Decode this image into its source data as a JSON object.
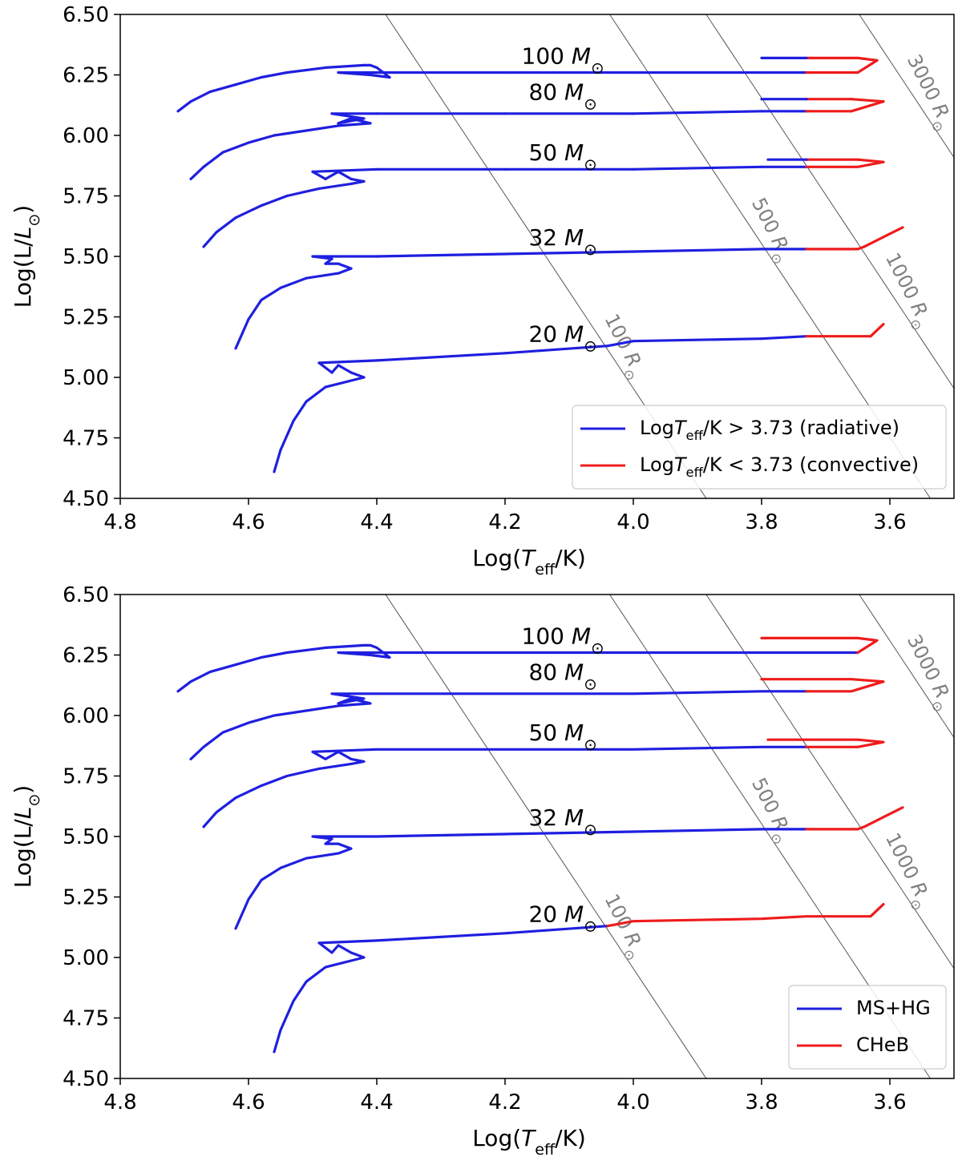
{
  "colors": {
    "blue": "#1f1fe0",
    "red": "#ee1c1c",
    "iso": "#555555",
    "radius_text": "#808080"
  },
  "text": {
    "xlabel": "Log(T_eff/K)",
    "ylabel": "Log(L/L_⊙)",
    "masses": [
      "100 M⊙",
      "80 M⊙",
      "50 M⊙",
      "32 M⊙",
      "20 M⊙"
    ],
    "radii": [
      "100 R⊙",
      "500 R⊙",
      "1000 R⊙",
      "3000 R⊙"
    ]
  },
  "chart_data": [
    {
      "type": "line",
      "title": "",
      "xlabel": "Log(T_eff/K)",
      "ylabel": "Log(L/L_⊙)",
      "xlim": [
        4.8,
        3.5
      ],
      "ylim": [
        4.5,
        6.5
      ],
      "x_ticks": [
        "4.8",
        "4.6",
        "4.4",
        "4.2",
        "4.0",
        "3.8",
        "3.6"
      ],
      "y_ticks": [
        "4.50",
        "4.75",
        "5.00",
        "5.25",
        "5.50",
        "5.75",
        "6.00",
        "6.25",
        "6.50"
      ],
      "legend": {
        "position": "lower-right",
        "entries": [
          {
            "label": "LogT_eff/K > 3.73 (radiative)",
            "color": "blue"
          },
          {
            "label": "LogT_eff/K < 3.73 (convective)",
            "color": "red"
          }
        ]
      },
      "split_rule": "temperature",
      "split_value": 3.73,
      "isoradius_lines_Rsun": [
        100,
        500,
        1000,
        3000
      ],
      "tracks": [
        {
          "mass_label": "100 M⊙",
          "label_at": [
            4.11,
            6.33
          ],
          "path": [
            [
              4.71,
              6.1
            ],
            [
              4.69,
              6.14
            ],
            [
              4.66,
              6.18
            ],
            [
              4.62,
              6.21
            ],
            [
              4.58,
              6.24
            ],
            [
              4.54,
              6.26
            ],
            [
              4.48,
              6.28
            ],
            [
              4.42,
              6.29
            ],
            [
              4.41,
              6.29
            ],
            [
              4.4,
              6.28
            ],
            [
              4.38,
              6.24
            ],
            [
              4.41,
              6.25
            ],
            [
              4.46,
              6.26
            ],
            [
              4.4,
              6.26
            ],
            [
              4.2,
              6.26
            ],
            [
              4.0,
              6.26
            ],
            [
              3.8,
              6.26
            ],
            [
              3.73,
              6.26
            ],
            [
              3.65,
              6.26
            ],
            [
              3.62,
              6.31
            ],
            [
              3.65,
              6.32
            ],
            [
              3.73,
              6.32
            ],
            [
              3.8,
              6.32
            ]
          ]
        },
        {
          "mass_label": "80 M⊙",
          "label_at": [
            4.11,
            6.18
          ],
          "path": [
            [
              4.69,
              5.82
            ],
            [
              4.67,
              5.87
            ],
            [
              4.64,
              5.93
            ],
            [
              4.6,
              5.97
            ],
            [
              4.56,
              6.0
            ],
            [
              4.51,
              6.02
            ],
            [
              4.46,
              6.04
            ],
            [
              4.41,
              6.05
            ],
            [
              4.44,
              6.07
            ],
            [
              4.46,
              6.05
            ],
            [
              4.42,
              6.07
            ],
            [
              4.47,
              6.09
            ],
            [
              4.4,
              6.09
            ],
            [
              4.2,
              6.09
            ],
            [
              4.0,
              6.09
            ],
            [
              3.8,
              6.1
            ],
            [
              3.73,
              6.1
            ],
            [
              3.66,
              6.1
            ],
            [
              3.61,
              6.14
            ],
            [
              3.66,
              6.15
            ],
            [
              3.73,
              6.15
            ],
            [
              3.8,
              6.15
            ]
          ]
        },
        {
          "mass_label": "50 M⊙",
          "label_at": [
            4.11,
            5.93
          ],
          "path": [
            [
              4.67,
              5.54
            ],
            [
              4.65,
              5.6
            ],
            [
              4.62,
              5.66
            ],
            [
              4.58,
              5.71
            ],
            [
              4.54,
              5.75
            ],
            [
              4.49,
              5.78
            ],
            [
              4.44,
              5.8
            ],
            [
              4.42,
              5.81
            ],
            [
              4.44,
              5.82
            ],
            [
              4.46,
              5.85
            ],
            [
              4.48,
              5.82
            ],
            [
              4.5,
              5.85
            ],
            [
              4.4,
              5.86
            ],
            [
              4.2,
              5.86
            ],
            [
              4.0,
              5.86
            ],
            [
              3.8,
              5.87
            ],
            [
              3.73,
              5.87
            ],
            [
              3.65,
              5.87
            ],
            [
              3.61,
              5.89
            ],
            [
              3.65,
              5.9
            ],
            [
              3.73,
              5.9
            ],
            [
              3.79,
              5.9
            ]
          ]
        },
        {
          "mass_label": "32 M⊙",
          "label_at": [
            4.11,
            5.58
          ],
          "path": [
            [
              4.62,
              5.12
            ],
            [
              4.6,
              5.24
            ],
            [
              4.58,
              5.32
            ],
            [
              4.55,
              5.37
            ],
            [
              4.51,
              5.41
            ],
            [
              4.46,
              5.43
            ],
            [
              4.44,
              5.45
            ],
            [
              4.46,
              5.47
            ],
            [
              4.48,
              5.47
            ],
            [
              4.47,
              5.49
            ],
            [
              4.5,
              5.5
            ],
            [
              4.4,
              5.5
            ],
            [
              4.2,
              5.51
            ],
            [
              4.0,
              5.52
            ],
            [
              3.8,
              5.53
            ],
            [
              3.73,
              5.53
            ],
            [
              3.65,
              5.53
            ],
            [
              3.64,
              5.54
            ],
            [
              3.61,
              5.58
            ],
            [
              3.58,
              5.62
            ]
          ]
        },
        {
          "mass_label": "20 M⊙",
          "label_at": [
            4.11,
            5.18
          ],
          "path": [
            [
              4.56,
              4.61
            ],
            [
              4.55,
              4.7
            ],
            [
              4.53,
              4.82
            ],
            [
              4.51,
              4.9
            ],
            [
              4.48,
              4.96
            ],
            [
              4.42,
              5.0
            ],
            [
              4.44,
              5.02
            ],
            [
              4.46,
              5.05
            ],
            [
              4.47,
              5.02
            ],
            [
              4.49,
              5.06
            ],
            [
              4.4,
              5.07
            ],
            [
              4.2,
              5.1
            ],
            [
              4.04,
              5.13
            ],
            [
              4.0,
              5.15
            ],
            [
              3.8,
              5.16
            ],
            [
              3.73,
              5.17
            ],
            [
              3.63,
              5.17
            ],
            [
              3.61,
              5.22
            ]
          ]
        }
      ]
    },
    {
      "type": "line",
      "title": "",
      "xlabel": "Log(T_eff/K)",
      "ylabel": "Log(L/L_⊙)",
      "xlim": [
        4.8,
        3.5
      ],
      "ylim": [
        4.5,
        6.5
      ],
      "x_ticks": [
        "4.8",
        "4.6",
        "4.4",
        "4.2",
        "4.0",
        "3.8",
        "3.6"
      ],
      "y_ticks": [
        "4.50",
        "4.75",
        "5.00",
        "5.25",
        "5.50",
        "5.75",
        "6.00",
        "6.25",
        "6.50"
      ],
      "legend": {
        "position": "lower-right",
        "entries": [
          {
            "label": "MS+HG",
            "color": "blue"
          },
          {
            "label": "CHeB",
            "color": "red"
          }
        ]
      },
      "split_rule": "phase",
      "isoradius_lines_Rsun": [
        100,
        500,
        1000,
        3000
      ],
      "tracks": [
        {
          "mass_label": "100 M⊙",
          "label_at": [
            4.11,
            6.33
          ],
          "split_index": 18,
          "path": [
            [
              4.71,
              6.1
            ],
            [
              4.69,
              6.14
            ],
            [
              4.66,
              6.18
            ],
            [
              4.62,
              6.21
            ],
            [
              4.58,
              6.24
            ],
            [
              4.54,
              6.26
            ],
            [
              4.48,
              6.28
            ],
            [
              4.42,
              6.29
            ],
            [
              4.41,
              6.29
            ],
            [
              4.4,
              6.28
            ],
            [
              4.38,
              6.24
            ],
            [
              4.41,
              6.25
            ],
            [
              4.46,
              6.26
            ],
            [
              4.4,
              6.26
            ],
            [
              4.2,
              6.26
            ],
            [
              4.0,
              6.26
            ],
            [
              3.8,
              6.26
            ],
            [
              3.73,
              6.26
            ],
            [
              3.65,
              6.26
            ],
            [
              3.62,
              6.31
            ],
            [
              3.65,
              6.32
            ],
            [
              3.73,
              6.32
            ],
            [
              3.8,
              6.32
            ]
          ]
        },
        {
          "mass_label": "80 M⊙",
          "label_at": [
            4.11,
            6.18
          ],
          "split_index": 16,
          "path": [
            [
              4.69,
              5.82
            ],
            [
              4.67,
              5.87
            ],
            [
              4.64,
              5.93
            ],
            [
              4.6,
              5.97
            ],
            [
              4.56,
              6.0
            ],
            [
              4.51,
              6.02
            ],
            [
              4.46,
              6.04
            ],
            [
              4.41,
              6.05
            ],
            [
              4.44,
              6.07
            ],
            [
              4.46,
              6.05
            ],
            [
              4.42,
              6.07
            ],
            [
              4.47,
              6.09
            ],
            [
              4.4,
              6.09
            ],
            [
              4.2,
              6.09
            ],
            [
              4.0,
              6.09
            ],
            [
              3.8,
              6.1
            ],
            [
              3.73,
              6.1
            ],
            [
              3.66,
              6.1
            ],
            [
              3.61,
              6.14
            ],
            [
              3.66,
              6.15
            ],
            [
              3.73,
              6.15
            ],
            [
              3.8,
              6.15
            ]
          ]
        },
        {
          "mass_label": "50 M⊙",
          "label_at": [
            4.11,
            5.93
          ],
          "split_index": 16,
          "path": [
            [
              4.67,
              5.54
            ],
            [
              4.65,
              5.6
            ],
            [
              4.62,
              5.66
            ],
            [
              4.58,
              5.71
            ],
            [
              4.54,
              5.75
            ],
            [
              4.49,
              5.78
            ],
            [
              4.44,
              5.8
            ],
            [
              4.42,
              5.81
            ],
            [
              4.44,
              5.82
            ],
            [
              4.46,
              5.85
            ],
            [
              4.48,
              5.82
            ],
            [
              4.5,
              5.85
            ],
            [
              4.4,
              5.86
            ],
            [
              4.2,
              5.86
            ],
            [
              4.0,
              5.86
            ],
            [
              3.8,
              5.87
            ],
            [
              3.73,
              5.87
            ],
            [
              3.65,
              5.87
            ],
            [
              3.61,
              5.89
            ],
            [
              3.65,
              5.9
            ],
            [
              3.73,
              5.9
            ],
            [
              3.79,
              5.9
            ]
          ]
        },
        {
          "mass_label": "32 M⊙",
          "label_at": [
            4.11,
            5.58
          ],
          "split_index": 15,
          "path": [
            [
              4.62,
              5.12
            ],
            [
              4.6,
              5.24
            ],
            [
              4.58,
              5.32
            ],
            [
              4.55,
              5.37
            ],
            [
              4.51,
              5.41
            ],
            [
              4.46,
              5.43
            ],
            [
              4.44,
              5.45
            ],
            [
              4.46,
              5.47
            ],
            [
              4.48,
              5.47
            ],
            [
              4.47,
              5.49
            ],
            [
              4.5,
              5.5
            ],
            [
              4.4,
              5.5
            ],
            [
              4.2,
              5.51
            ],
            [
              4.0,
              5.52
            ],
            [
              3.8,
              5.53
            ],
            [
              3.73,
              5.53
            ],
            [
              3.65,
              5.53
            ],
            [
              3.64,
              5.54
            ],
            [
              3.61,
              5.58
            ],
            [
              3.58,
              5.62
            ]
          ]
        },
        {
          "mass_label": "20 M⊙",
          "label_at": [
            4.11,
            5.18
          ],
          "split_index": 12,
          "path": [
            [
              4.56,
              4.61
            ],
            [
              4.55,
              4.7
            ],
            [
              4.53,
              4.82
            ],
            [
              4.51,
              4.9
            ],
            [
              4.48,
              4.96
            ],
            [
              4.42,
              5.0
            ],
            [
              4.44,
              5.02
            ],
            [
              4.46,
              5.05
            ],
            [
              4.47,
              5.02
            ],
            [
              4.49,
              5.06
            ],
            [
              4.4,
              5.07
            ],
            [
              4.2,
              5.1
            ],
            [
              4.04,
              5.13
            ],
            [
              4.0,
              5.15
            ],
            [
              3.8,
              5.16
            ],
            [
              3.73,
              5.17
            ],
            [
              3.63,
              5.17
            ],
            [
              3.61,
              5.22
            ]
          ]
        }
      ]
    }
  ]
}
